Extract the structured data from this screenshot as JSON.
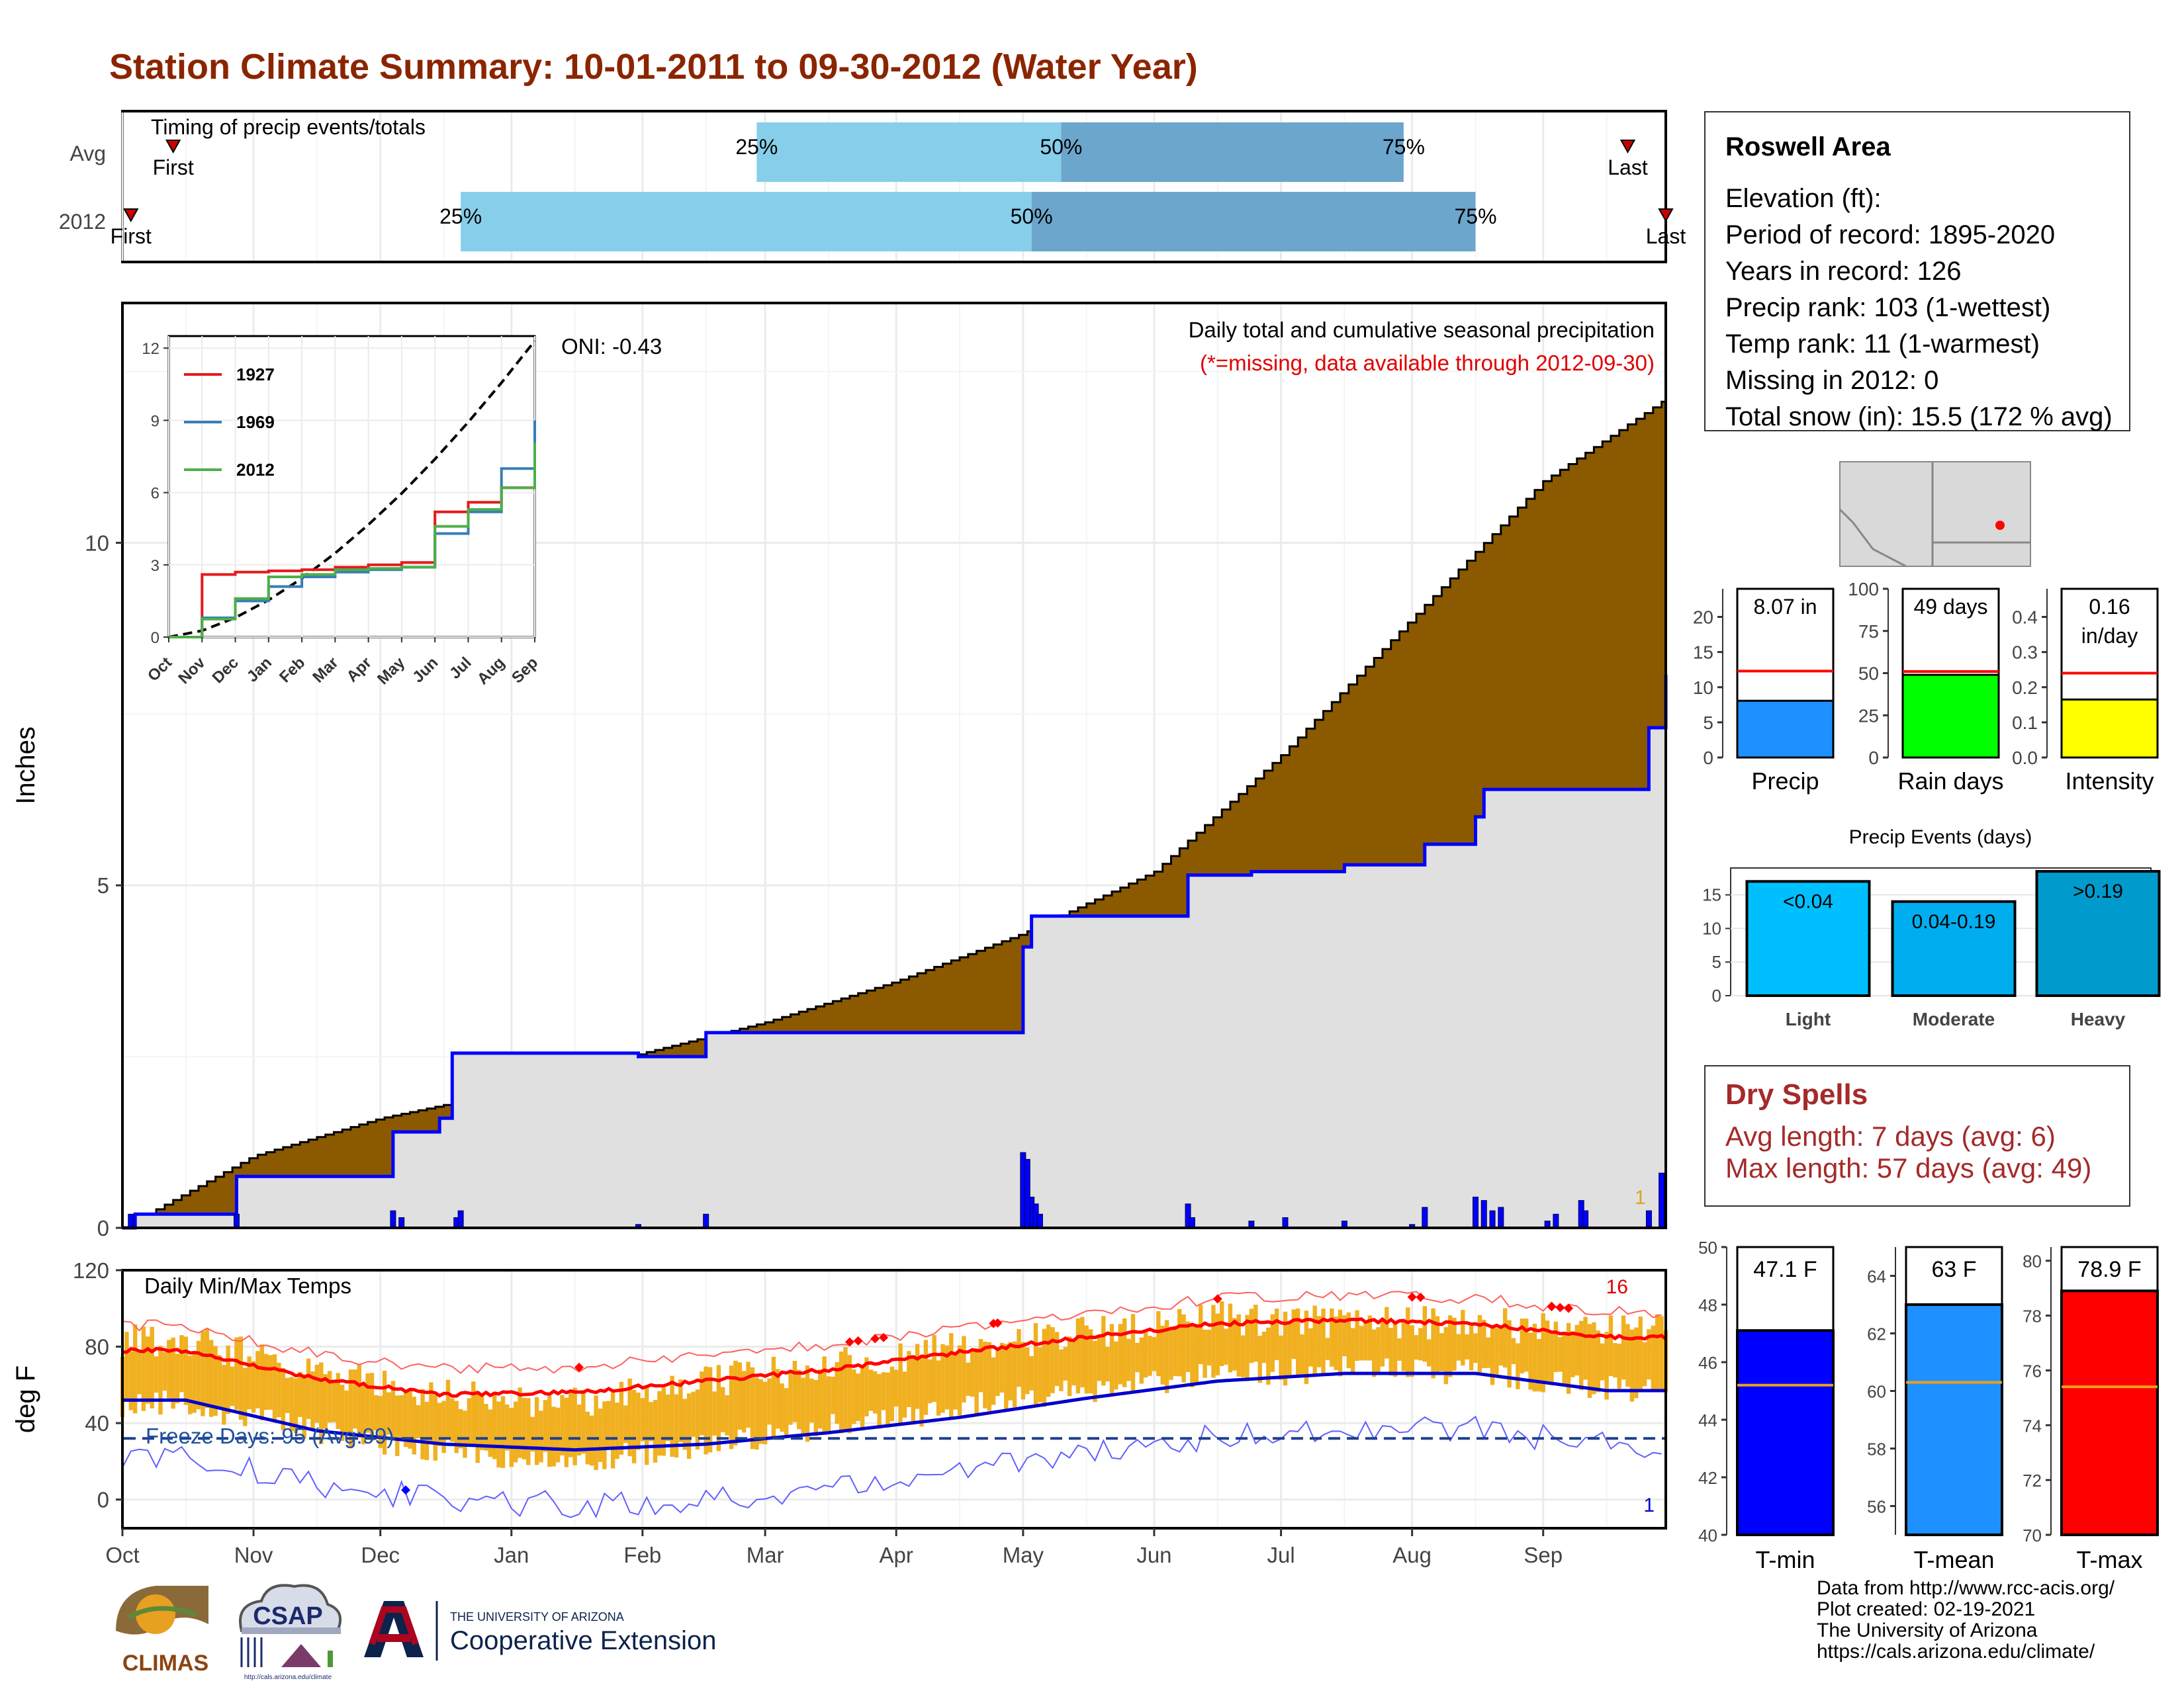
{
  "title": "Station Climate Summary: 10-01-2011 to 09-30-2012 (Water Year)",
  "colors": {
    "title": "#8B2500",
    "precip_fill": "#8B5A00",
    "observed_fill": "#E0E0E0",
    "observed_line": "#0000FF",
    "surplus_fill": "#008000",
    "temp_bar": "#F0B020",
    "avg_max": "#FF0000",
    "avg_min": "#0000CC",
    "timing_light": "#87CEEB",
    "timing_dark": "#6CA6CD",
    "dry_text": "#A52A2A"
  },
  "timing": {
    "title": "Timing of precip events/totals",
    "rows": [
      {
        "label": "Avg",
        "first": "First",
        "last": "Last",
        "first_date": "2011-10-13",
        "last_date": "2012-09-21",
        "p25_date": "2012-02-28",
        "p50_date": "2012-05-10",
        "p75_date": "2012-07-30",
        "p25": "25%",
        "p50": "50%",
        "p75": "75%"
      },
      {
        "label": "2012",
        "first": "First",
        "last": "Last",
        "first_date": "2011-10-03",
        "last_date": "2012-09-30",
        "p25_date": "2011-12-20",
        "p50_date": "2012-05-03",
        "p75_date": "2012-08-16",
        "p25": "25%",
        "p50": "50%",
        "p75": "75%"
      }
    ]
  },
  "precip_panel": {
    "ylabel": "Inches",
    "yticks": [
      0,
      5,
      10
    ],
    "ylim": [
      0,
      13.5
    ],
    "heading": "Daily total and cumulative seasonal precipitation",
    "note": "(*=missing, data available through 2012-09-30)",
    "oni": "ONI: -0.43",
    "right_count": "1"
  },
  "inset": {
    "yticks": [
      "0",
      "3",
      "6",
      "9",
      "12"
    ],
    "xticks": [
      "Oct",
      "Nov",
      "Dec",
      "Jan",
      "Feb",
      "Mar",
      "Apr",
      "May",
      "Jun",
      "Jul",
      "Aug",
      "Sep"
    ],
    "series": [
      {
        "name": "1927",
        "color": "#E41A1C"
      },
      {
        "name": "1969",
        "color": "#377EB8"
      },
      {
        "name": "2012",
        "color": "#4DAF4A"
      }
    ]
  },
  "temp_panel": {
    "title": "Daily Min/Max Temps",
    "ylabel": "deg F",
    "yticks": [
      0,
      40,
      80,
      120
    ],
    "freeze": "Freeze Days: 95 (Avg:99)",
    "max_count": "16",
    "min_count": "1"
  },
  "months": [
    "Oct",
    "Nov",
    "Dec",
    "Jan",
    "Feb",
    "Mar",
    "Apr",
    "May",
    "Jun",
    "Jul",
    "Aug",
    "Sep"
  ],
  "station": {
    "name": "Roswell Area",
    "lines": [
      "Elevation (ft):",
      "Period of record: 1895-2020",
      "Years in record: 126",
      "Precip rank: 103 (1-wettest)",
      "Temp rank: 11 (1-warmest)",
      "Missing in 2012: 0",
      "Total snow (in): 15.5 (172 % avg)"
    ]
  },
  "gauges": [
    {
      "label": "Precip",
      "value_text": "8.07 in",
      "value": 8.07,
      "avg": 12.3,
      "ymax": 24,
      "ticks": [
        "0",
        "5",
        "10",
        "15",
        "20"
      ],
      "tick_vals": [
        0,
        5,
        10,
        15,
        20
      ],
      "color": "#1E90FF"
    },
    {
      "label": "Rain days",
      "value_text": "49 days",
      "value": 49,
      "avg": 51,
      "ymax": 100,
      "ticks": [
        "0",
        "25",
        "50",
        "75",
        "100"
      ],
      "tick_vals": [
        0,
        25,
        50,
        75,
        100
      ],
      "color": "#00FF00"
    },
    {
      "label": "Intensity",
      "value_text": "0.16",
      "value_text2": "in/day",
      "value": 0.165,
      "avg": 0.24,
      "ymax": 0.48,
      "ticks": [
        "0.0",
        "0.1",
        "0.2",
        "0.3",
        "0.4"
      ],
      "tick_vals": [
        0,
        0.1,
        0.2,
        0.3,
        0.4
      ],
      "color": "#FFFF00"
    }
  ],
  "events": {
    "title": "Precip Events (days)",
    "yticks": [
      "0",
      "5",
      "10",
      "15"
    ],
    "bars": [
      {
        "label": "Light",
        "range": "<0.04",
        "value": 17,
        "color": "#00BFFF"
      },
      {
        "label": "Moderate",
        "range": "0.04-0.19",
        "value": 14,
        "color": "#00AEEF"
      },
      {
        "label": "Heavy",
        "range": ">0.19",
        "value": 18.5,
        "color": "#009ACD"
      }
    ]
  },
  "dry_spells": {
    "title": "Dry Spells",
    "avg_length": "Avg length: 7 days (avg: 6)",
    "max_length": "Max length: 57 days (avg: 49)"
  },
  "temp_gauges": [
    {
      "label": "T-min",
      "value_text": "47.1 F",
      "value": 47.1,
      "avg": 45.2,
      "ymin": 40,
      "ymax": 50,
      "ticks": [
        "40",
        "42",
        "44",
        "46",
        "48",
        "50"
      ],
      "tick_vals": [
        40,
        42,
        44,
        46,
        48,
        50
      ],
      "color": "#0000FF"
    },
    {
      "label": "T-mean",
      "value_text": "63 F",
      "value": 63,
      "avg": 60.3,
      "ymin": 55,
      "ymax": 65,
      "ticks": [
        "56",
        "58",
        "60",
        "62",
        "64"
      ],
      "tick_vals": [
        56,
        58,
        60,
        62,
        64
      ],
      "color": "#1E90FF"
    },
    {
      "label": "T-max",
      "value_text": "78.9 F",
      "value": 78.9,
      "avg": 75.4,
      "ymin": 70,
      "ymax": 80.5,
      "ticks": [
        "70",
        "72",
        "74",
        "76",
        "78",
        "80"
      ],
      "tick_vals": [
        70,
        72,
        74,
        76,
        78,
        80
      ],
      "color": "#FF0000"
    }
  ],
  "logos": {
    "climas": "CLIMAS",
    "csap": "CSAP",
    "csap_url": "http://cals.arizona.edu/climate",
    "ua_top": "THE UNIVERSITY OF ARIZONA",
    "ua_bottom": "Cooperative Extension"
  },
  "credits": [
    "Data from http://www.rcc-acis.org/",
    "Plot created: 02-19-2021",
    "The University of Arizona",
    "https://cals.arizona.edu/climate/"
  ],
  "chart_data": [
    {
      "type": "area",
      "title": "Daily total and cumulative seasonal precipitation",
      "ylabel": "Inches",
      "ylim": [
        0,
        13.5
      ],
      "x_unit": "date",
      "series": [
        {
          "name": "",
          "x": [
            "2011-10-01",
            "2011-11-01",
            "2011-12-01",
            "2012-01-01",
            "2012-02-01",
            "2012-03-01",
            "2012-04-01",
            "2012-05-01",
            "2012-06-01",
            "2012-07-01",
            "2012-08-01",
            "2012-09-01",
            "2012-09-30"
          ],
          "values": [
            0,
            1.05,
            1.6,
            2.0,
            2.55,
            3.0,
            3.6,
            4.3,
            5.2,
            6.9,
            8.9,
            10.9,
            12.1
          ]
        },
        {
          "name": "",
          "x": [
            "2011-10-01",
            "2011-10-04",
            "2011-10-28",
            "2011-11-13",
            "2011-12-04",
            "2011-12-15",
            "2011-12-18",
            "2012-01-31",
            "2012-02-16",
            "2012-04-30",
            "2012-05-01",
            "2012-05-03",
            "2012-06-01",
            "2012-06-09",
            "2012-06-24",
            "2012-07-16",
            "2012-08-01",
            "2012-08-04",
            "2012-08-16",
            "2012-08-18",
            "2012-09-26",
            "2012-09-30"
          ],
          "values": [
            0,
            0.2,
            0.75,
            0.75,
            1.4,
            1.6,
            2.55,
            2.5,
            2.85,
            2.85,
            4.1,
            4.55,
            4.55,
            5.15,
            5.2,
            5.3,
            5.3,
            5.6,
            6.0,
            6.4,
            7.3,
            8.07
          ]
        }
      ]
    },
    {
      "type": "line",
      "ylabel": "",
      "ylim": [
        0,
        12
      ],
      "series": [
        {
          "name": "1927",
          "x": [
            "Oct",
            "Nov",
            "Dec",
            "Jan",
            "Feb",
            "Mar",
            "Apr",
            "May",
            "Jun",
            "Jul",
            "Aug",
            "Sep"
          ],
          "values": [
            0,
            2.6,
            2.7,
            2.75,
            2.8,
            2.9,
            3.0,
            3.1,
            5.2,
            5.6,
            6.2,
            7.0
          ]
        },
        {
          "name": "1969",
          "x": [
            "Oct",
            "Nov",
            "Dec",
            "Jan",
            "Feb",
            "Mar",
            "Apr",
            "May",
            "Jun",
            "Jul",
            "Aug",
            "Sep"
          ],
          "values": [
            0,
            0.8,
            1.5,
            2.1,
            2.5,
            2.7,
            2.8,
            2.9,
            4.3,
            5.2,
            7.0,
            9.0
          ]
        },
        {
          "name": "2012",
          "x": [
            "Oct",
            "Nov",
            "Dec",
            "Jan",
            "Feb",
            "Mar",
            "Apr",
            "May",
            "Jun",
            "Jul",
            "Aug",
            "Sep"
          ],
          "values": [
            0,
            0.75,
            1.6,
            2.5,
            2.6,
            2.8,
            2.85,
            2.9,
            4.6,
            5.3,
            6.2,
            8.07
          ]
        }
      ]
    },
    {
      "type": "line",
      "title": "Daily Min/Max Temps",
      "ylabel": "deg F",
      "ylim": [
        -15,
        120
      ],
      "categories": [
        "Oct",
        "Nov",
        "Dec",
        "Jan",
        "Feb",
        "Mar",
        "Apr",
        "May",
        "Jun",
        "Jul",
        "Aug",
        "Sep"
      ],
      "series": [
        {
          "name": "",
          "values": [
            78,
            63,
            55,
            56,
            62,
            68,
            77,
            85,
            92,
            94,
            92,
            85
          ]
        },
        {
          "name": "",
          "values": [
            52,
            36,
            29,
            26,
            29,
            35,
            43,
            53,
            62,
            66,
            66,
            57
          ]
        },
        {
          "name": "",
          "values": [
            83,
            68,
            55,
            50,
            62,
            70,
            80,
            87,
            95,
            93,
            92,
            88
          ]
        },
        {
          "name": "",
          "values": [
            50,
            36,
            25,
            20,
            28,
            38,
            48,
            57,
            65,
            68,
            67,
            58
          ]
        }
      ]
    },
    {
      "type": "bar",
      "title": "Precip Events (days)",
      "categories": [
        "Light",
        "Moderate",
        "Heavy"
      ],
      "values": [
        17,
        14,
        18.5
      ]
    }
  ]
}
